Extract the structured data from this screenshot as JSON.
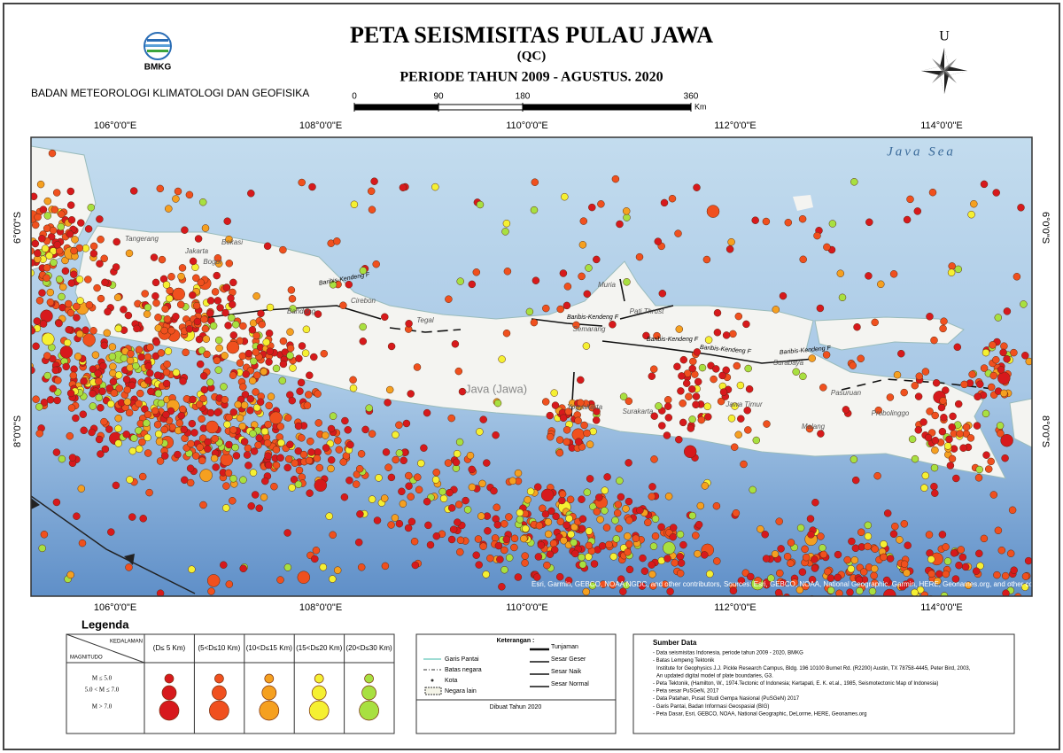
{
  "header": {
    "title": "PETA SEISMISITAS PULAU JAWA",
    "subtitle": "(QC)",
    "period": "PERIODE TAHUN 2009 - AGUSTUS. 2020",
    "logo_text": "BMKG",
    "agency": "BADAN METEOROLOGI KLIMATOLOGI DAN GEOFISIKA",
    "north": "U"
  },
  "scale_bar": {
    "ticks": [
      0,
      90,
      180,
      360
    ],
    "unit": "Km"
  },
  "map": {
    "lon_labels": [
      "106°0'0\"E",
      "108°0'0\"E",
      "110°0'0\"E",
      "112°0'0\"E",
      "114°0'0\"E"
    ],
    "lat_labels": [
      "6°0'0\"S",
      "8°0'0\"S"
    ],
    "sea_label": "Java Sea",
    "island_label": "Java (Jawa)",
    "places": [
      "Tangerang",
      "Jakarta",
      "Bekasi",
      "Bogor",
      "Bandung",
      "Cirebon",
      "Tegal",
      "Semarang",
      "Surakarta",
      "Yogyakarta",
      "Jawa Timur",
      "Malang",
      "Surabaya",
      "Pasuruan",
      "Probolinggo",
      "Muria",
      "Pati Thrust"
    ],
    "faults": [
      "Baribis-Kendeng F",
      "Baribis-Kendeng F",
      "Baribis-Kendeng F",
      "Baribis-Kendeng F",
      "Baribis-Kendeng F"
    ],
    "attribution": "Esri, Garmin, GEBCO, NOAA NGDC, and other contributors, Sources: Esri, GEBCO, NOAA, National Geographic, Garmin, HERE, Geonames.org, and other contributors"
  },
  "legend": {
    "title": "Legenda",
    "depth_header": "KEDALAMAN",
    "magnitude_header": "MAGNITUDO",
    "columns": [
      {
        "label": "(D≤ 5 Km)",
        "color": "#d7191c"
      },
      {
        "label": "(5<D≤10 Km)",
        "color": "#f0501e"
      },
      {
        "label": "(10<D≤15 Km)",
        "color": "#f5a020"
      },
      {
        "label": "(15<D≤20 Km)",
        "color": "#f5f032"
      },
      {
        "label": "(20<D≤30 Km)",
        "color": "#a8e040"
      }
    ],
    "rows": [
      "M ≤ 5.0",
      "5.0 < M ≤ 7.0",
      "M > 7.0"
    ]
  },
  "keterangan": {
    "title": "Keterangan :",
    "left_items": [
      "Garis Pantai",
      "Batas negara",
      "Kota",
      "Negara lain"
    ],
    "right_items": [
      "Tunjaman",
      "Sesar Geser",
      "Sesar Naik",
      "Sesar Normal"
    ],
    "footer": "Dibuat Tahun 2020"
  },
  "sumber_data": {
    "title": "Sumber Data",
    "lines": [
      "- Data seismisitas Indonesia, periode tahun 2009 - 2020, BMKG",
      "- Batas Lempeng Tektonik",
      "Institute for Geophysics J.J. Pickle Research Campus, Bldg. 196 10100 Burnet Rd. (R2200) Austin, TX 78758-4445, Peter Bird, 2003,",
      "An updated digital model of plate boundaries, G3.",
      "- Peta Tektonik, (Hamilton, W., 1974.Tectonic of Indonesia; Kertapati, E. K. et.al., 1985, Seismotectonic Map of Indonesia)",
      "- Peta sesar PuSGeN, 2017",
      "- Data Patahan, Pusat Studi Gempa Nasional (PuSGeN) 2017",
      "- Garis Pantai, Badan Informasi Geospasial (BIG)",
      "- Peta Dasar, Esri, GEBCO, NOAA, National Geographic, DeLorme, HERE, Geonames.org"
    ]
  }
}
